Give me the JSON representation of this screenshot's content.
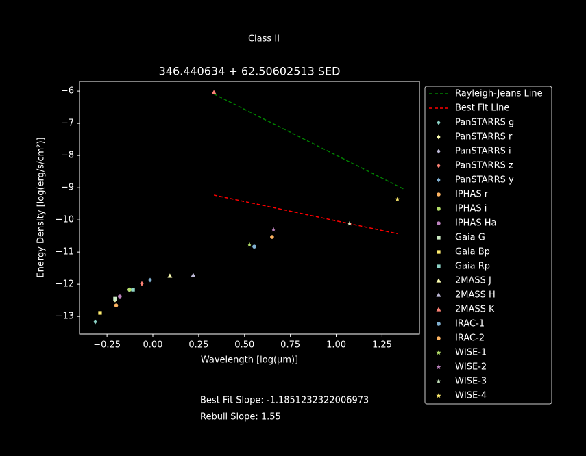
{
  "chart_data": {
    "type": "scatter",
    "suptitle": "Class II",
    "title": "346.440634 + 62.50602513 SED",
    "x_label": "Wavelength [log(μm)]",
    "y_label": "Energy Density [log(erg/s/cm²)]",
    "annotations": [
      "Best Fit Slope: -1.1851232322006973",
      "Rebull Slope: 1.55"
    ],
    "xlim": [
      -0.4,
      1.454
    ],
    "ylim": [
      -13.55,
      -5.7
    ],
    "xticks": [
      {
        "value": -0.25,
        "label": "−0.25"
      },
      {
        "value": 0,
        "label": "0.00"
      },
      {
        "value": 0.25,
        "label": "0.25"
      },
      {
        "value": 0.5,
        "label": "0.50"
      },
      {
        "value": 0.75,
        "label": "0.75"
      },
      {
        "value": 1,
        "label": "1.00"
      },
      {
        "value": 1.25,
        "label": "1.25"
      }
    ],
    "yticks": [
      {
        "value": -6,
        "label": "−6"
      },
      {
        "value": -7,
        "label": "−7"
      },
      {
        "value": -8,
        "label": "−8"
      },
      {
        "value": -9,
        "label": "−9"
      },
      {
        "value": -10,
        "label": "−10"
      },
      {
        "value": -11,
        "label": "−11"
      },
      {
        "value": -12,
        "label": "−12"
      },
      {
        "value": -13,
        "label": "−13"
      }
    ],
    "grid": false,
    "legend": "outside-right",
    "series": [
      {
        "name": "Rayleigh-Jeans Line",
        "type": "line",
        "color": "#008000",
        "x": [
          0.333,
          1.375
        ],
        "values": [
          -6.09,
          -9.06
        ]
      },
      {
        "name": "Best Fit Line",
        "type": "line",
        "color": "#ff0000",
        "x": [
          0.333,
          1.334
        ],
        "values": [
          -9.23,
          -10.43
        ]
      },
      {
        "name": "PanSTARRS g",
        "marker": "diamond",
        "color": "#8dd3c7",
        "x": [
          -0.314
        ],
        "values": [
          -13.17
        ]
      },
      {
        "name": "PanSTARRS r",
        "marker": "diamond",
        "color": "#feffb3",
        "x": [
          -0.206
        ],
        "values": [
          -12.49
        ]
      },
      {
        "name": "PanSTARRS i",
        "marker": "diamond",
        "color": "#bfbbd9",
        "x": [
          -0.13
        ],
        "values": [
          -12.17
        ]
      },
      {
        "name": "PanSTARRS z",
        "marker": "diamond",
        "color": "#fa8174",
        "x": [
          -0.06
        ],
        "values": [
          -11.98
        ]
      },
      {
        "name": "PanSTARRS y",
        "marker": "diamond",
        "color": "#81b1d2",
        "x": [
          -0.015
        ],
        "values": [
          -11.87
        ]
      },
      {
        "name": "IPHAS r",
        "marker": "circle",
        "color": "#fdb462",
        "x": [
          -0.2
        ],
        "values": [
          -12.66
        ]
      },
      {
        "name": "IPHAS i",
        "marker": "circle",
        "color": "#b3de69",
        "x": [
          -0.127
        ],
        "values": [
          -12.17
        ]
      },
      {
        "name": "IPHAS Ha",
        "marker": "circle",
        "color": "#bc82bd",
        "x": [
          -0.18
        ],
        "values": [
          -12.38
        ]
      },
      {
        "name": "Gaia G",
        "marker": "square",
        "color": "#ccebc4",
        "x": [
          -0.206
        ],
        "values": [
          -12.45
        ]
      },
      {
        "name": "Gaia Bp",
        "marker": "square",
        "color": "#ffed6f",
        "x": [
          -0.288
        ],
        "values": [
          -12.89
        ]
      },
      {
        "name": "Gaia Rp",
        "marker": "square",
        "color": "#8dd3c7",
        "x": [
          -0.108
        ],
        "values": [
          -12.17
        ]
      },
      {
        "name": "2MASS J",
        "marker": "triangle",
        "color": "#feffb3",
        "x": [
          0.093
        ],
        "values": [
          -11.74
        ]
      },
      {
        "name": "2MASS H",
        "marker": "triangle",
        "color": "#bfbbd9",
        "x": [
          0.22
        ],
        "values": [
          -11.72
        ]
      },
      {
        "name": "2MASS K",
        "marker": "triangle",
        "color": "#fa8174",
        "x": [
          0.333
        ],
        "values": [
          -6.04
        ]
      },
      {
        "name": "IRAC-1",
        "marker": "circle",
        "color": "#81b1d2",
        "x": [
          0.553
        ],
        "values": [
          -10.83
        ]
      },
      {
        "name": "IRAC-2",
        "marker": "circle",
        "color": "#fdb462",
        "x": [
          0.65
        ],
        "values": [
          -10.53
        ]
      },
      {
        "name": "WISE-1",
        "marker": "star",
        "color": "#b3de69",
        "x": [
          0.527
        ],
        "values": [
          -10.77
        ]
      },
      {
        "name": "WISE-2",
        "marker": "star",
        "color": "#bc82bd",
        "x": [
          0.658
        ],
        "values": [
          -10.3
        ]
      },
      {
        "name": "WISE-3",
        "marker": "star",
        "color": "#ccebc4",
        "x": [
          1.073
        ],
        "values": [
          -10.11
        ]
      },
      {
        "name": "WISE-4",
        "marker": "star",
        "color": "#ffed6f",
        "x": [
          1.334
        ],
        "values": [
          -9.36
        ]
      }
    ]
  }
}
